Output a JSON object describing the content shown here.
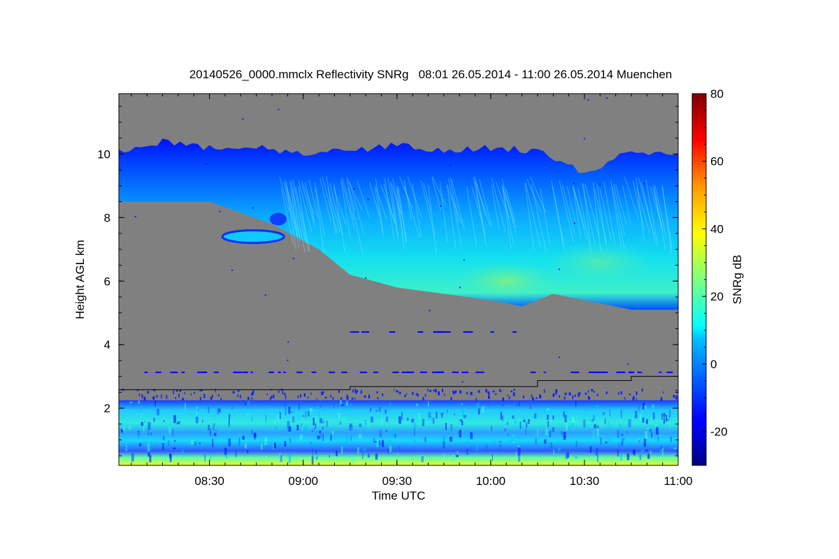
{
  "chart_data": {
    "type": "heatmap",
    "title": "20140526_0000.mmclx Reflectivity SNRg   08:01 26.05.2014 - 11:00 26.05.2014 Muenchen",
    "xlabel": "Time UTC",
    "ylabel": "Height AGL km",
    "x_range": [
      "08:01",
      "11:00"
    ],
    "x_ticks": [
      "08:30",
      "09:00",
      "09:30",
      "10:00",
      "10:30",
      "11:00"
    ],
    "ylim": [
      0.2,
      11.9
    ],
    "y_ticks": [
      2,
      4,
      6,
      8,
      10
    ],
    "colorbar": {
      "label": "SNRg dB",
      "range": [
        -30,
        80
      ],
      "ticks": [
        -20,
        0,
        20,
        40,
        60,
        80
      ],
      "colormap": "jet"
    },
    "background_color": "#808080",
    "features": {
      "cloud_top_km": [
        {
          "t": "08:01",
          "h": 10.1
        },
        {
          "t": "08:15",
          "h": 10.4
        },
        {
          "t": "08:30",
          "h": 10.2
        },
        {
          "t": "08:45",
          "h": 10.2
        },
        {
          "t": "09:00",
          "h": 10.0
        },
        {
          "t": "09:15",
          "h": 10.1
        },
        {
          "t": "09:30",
          "h": 10.3
        },
        {
          "t": "09:45",
          "h": 10.1
        },
        {
          "t": "10:00",
          "h": 10.2
        },
        {
          "t": "10:15",
          "h": 10.1
        },
        {
          "t": "10:30",
          "h": 9.4
        },
        {
          "t": "10:45",
          "h": 10.1
        },
        {
          "t": "11:00",
          "h": 10.0
        }
      ],
      "cloud_base_km": [
        {
          "t": "08:01",
          "h": 8.5
        },
        {
          "t": "08:30",
          "h": 8.5
        },
        {
          "t": "08:50",
          "h": 7.8
        },
        {
          "t": "09:05",
          "h": 7.0
        },
        {
          "t": "09:15",
          "h": 6.2
        },
        {
          "t": "09:30",
          "h": 5.8
        },
        {
          "t": "09:45",
          "h": 5.6
        },
        {
          "t": "10:00",
          "h": 5.4
        },
        {
          "t": "10:10",
          "h": 5.2
        },
        {
          "t": "10:20",
          "h": 5.6
        },
        {
          "t": "10:30",
          "h": 5.4
        },
        {
          "t": "10:45",
          "h": 5.1
        },
        {
          "t": "11:00",
          "h": 5.1
        }
      ],
      "boundary_line_km": [
        {
          "t": "08:01",
          "h": 2.58
        },
        {
          "t": "09:15",
          "h": 2.68
        },
        {
          "t": "10:15",
          "h": 2.87
        },
        {
          "t": "10:45",
          "h": 3.0
        },
        {
          "t": "11:00",
          "h": 3.0
        }
      ],
      "boundary_layer_top_km": 2.25
    }
  }
}
